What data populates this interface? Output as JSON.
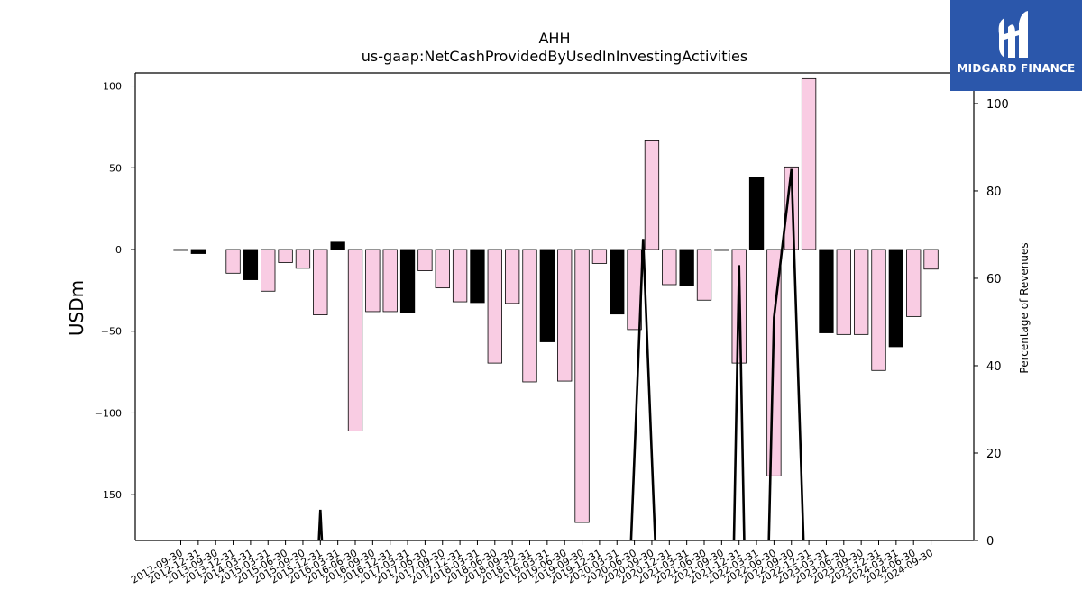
{
  "brand": {
    "name": "MIDGARD FINANCE",
    "color": "#2b57ab",
    "logo_icon": "midgard-logo-icon"
  },
  "chart_data": {
    "type": "bar",
    "title": "AHH",
    "subtitle": "us-gaap:NetCashProvidedByUsedInInvestingActivities",
    "ylabel": "USDm",
    "y2label": "Percentage of Revenues",
    "ylim": [
      -178,
      108
    ],
    "y2lim": [
      0,
      107
    ],
    "yticks": [
      100,
      50,
      0,
      -50,
      -100,
      -150
    ],
    "y2ticks": [
      0,
      20,
      40,
      60,
      80,
      100
    ],
    "grid": false,
    "colors": {
      "pink": "#f9cce3",
      "black": "#000000"
    },
    "categories": [
      "2012-09-30",
      "2012-12-31",
      "2013-09-30",
      "2013-12-31",
      "2014-03-31",
      "2015-03-31",
      "2015-06-30",
      "2015-09-30",
      "2015-12-31",
      "2016-03-31",
      "2016-06-30",
      "2016-09-30",
      "2016-12-31",
      "2017-03-31",
      "2017-06-30",
      "2017-09-30",
      "2017-12-31",
      "2018-03-31",
      "2018-06-30",
      "2018-09-30",
      "2018-12-31",
      "2019-03-31",
      "2019-06-30",
      "2019-09-30",
      "2019-12-31",
      "2020-03-31",
      "2020-06-30",
      "2020-09-30",
      "2020-12-31",
      "2021-03-31",
      "2021-06-30",
      "2021-09-30",
      "2021-12-31",
      "2022-03-31",
      "2022-06-30",
      "2022-09-30",
      "2022-12-31",
      "2023-03-31",
      "2023-06-30",
      "2023-09-30",
      "2023-12-31",
      "2024-03-31",
      "2024-06-30",
      "2024-09-30"
    ],
    "series": [
      {
        "kind": "bar",
        "values": [
          -0.5,
          -2.5,
          null,
          -14.5,
          -18.5,
          -25.5,
          -8,
          -11.5,
          -40,
          4.5,
          -111,
          -38,
          -38,
          -38.5,
          -13,
          -23.5,
          -32,
          -32.5,
          -69.5,
          -33,
          -81,
          -56.5,
          -80.5,
          -167,
          -8.5,
          -39.5,
          -49,
          67,
          -21.5,
          -22,
          -31,
          -0.5,
          -69.5,
          44,
          -138.5,
          50.5,
          104.5,
          -51,
          -52,
          -52,
          -74,
          -59.5,
          -41,
          -12
        ],
        "colors": [
          "black",
          "black",
          "pink",
          "pink",
          "black",
          "pink",
          "pink",
          "pink",
          "pink",
          "black",
          "pink",
          "pink",
          "pink",
          "black",
          "pink",
          "pink",
          "pink",
          "black",
          "pink",
          "pink",
          "pink",
          "black",
          "pink",
          "pink",
          "pink",
          "black",
          "pink",
          "pink",
          "pink",
          "black",
          "pink",
          "black",
          "pink",
          "black",
          "pink",
          "pink",
          "pink",
          "black",
          "pink",
          "pink",
          "pink",
          "black",
          "pink",
          "pink"
        ]
      },
      {
        "kind": "line",
        "axis": "right",
        "color": "#000000",
        "points": [
          [
            7.9,
            -1
          ],
          [
            8.0,
            7
          ],
          [
            8.1,
            -1
          ],
          [
            25.8,
            -1
          ],
          [
            26.5,
            69
          ],
          [
            27.2,
            -1
          ],
          [
            31.7,
            -1
          ],
          [
            32.0,
            63
          ],
          [
            32.3,
            -1
          ],
          [
            33.7,
            -1
          ],
          [
            34.0,
            51
          ],
          [
            35.0,
            85
          ],
          [
            35.7,
            -1
          ]
        ]
      }
    ]
  }
}
